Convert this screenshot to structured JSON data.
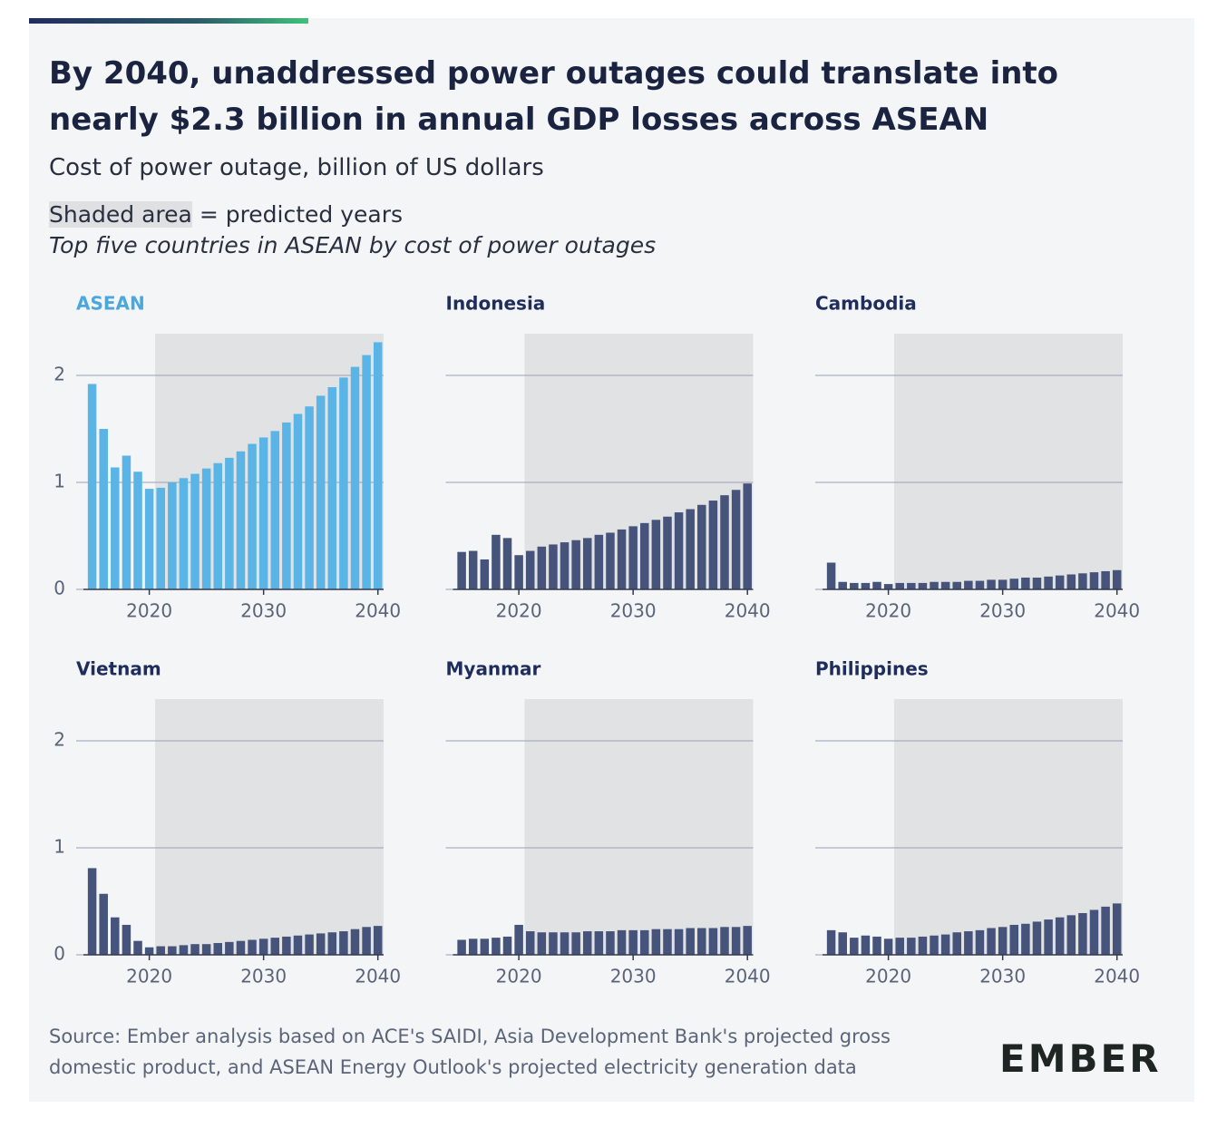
{
  "header": {
    "title": "By 2040, unaddressed power outages could translate into nearly $2.3 billion in annual GDP losses across ASEAN",
    "subtitle": "Cost of power outage, billion of US dollars",
    "legend_shaded": "Shaded area",
    "legend_text": "= predicted years",
    "note": "Top five countries in ASEAN by cost of power outages"
  },
  "chart_data": [
    {
      "type": "bar",
      "title": "ASEAN",
      "color": "#5ab4e5",
      "title_color": "#4aa8dc",
      "x": [
        2015,
        2016,
        2017,
        2018,
        2019,
        2020,
        2021,
        2022,
        2023,
        2024,
        2025,
        2026,
        2027,
        2028,
        2029,
        2030,
        2031,
        2032,
        2033,
        2034,
        2035,
        2036,
        2037,
        2038,
        2039,
        2040
      ],
      "values": [
        1.92,
        1.5,
        1.14,
        1.25,
        1.1,
        0.94,
        0.95,
        1.0,
        1.04,
        1.08,
        1.13,
        1.18,
        1.23,
        1.29,
        1.36,
        1.42,
        1.48,
        1.56,
        1.64,
        1.71,
        1.81,
        1.89,
        1.98,
        2.08,
        2.19,
        2.31
      ],
      "xlim": [
        2014,
        2040.5
      ],
      "xticks": [
        2020,
        2030,
        2040
      ],
      "ylim": [
        0,
        2.39
      ],
      "yticks": [
        0,
        1,
        2
      ],
      "shaded_range": [
        2020.5,
        2040.5
      ],
      "grid": true
    },
    {
      "type": "bar",
      "title": "Indonesia",
      "color": "#46537a",
      "title_color": "#1f2d5c",
      "x": [
        2015,
        2016,
        2017,
        2018,
        2019,
        2020,
        2021,
        2022,
        2023,
        2024,
        2025,
        2026,
        2027,
        2028,
        2029,
        2030,
        2031,
        2032,
        2033,
        2034,
        2035,
        2036,
        2037,
        2038,
        2039,
        2040
      ],
      "values": [
        0.35,
        0.36,
        0.28,
        0.51,
        0.48,
        0.32,
        0.36,
        0.4,
        0.42,
        0.44,
        0.46,
        0.48,
        0.51,
        0.53,
        0.56,
        0.59,
        0.62,
        0.65,
        0.68,
        0.72,
        0.75,
        0.79,
        0.83,
        0.88,
        0.93,
        0.99
      ],
      "xlim": [
        2014,
        2040.5
      ],
      "xticks": [
        2020,
        2030,
        2040
      ],
      "ylim": [
        0,
        2.39
      ],
      "yticks": [
        0,
        1,
        2
      ],
      "shaded_range": [
        2020.5,
        2040.5
      ],
      "grid": true
    },
    {
      "type": "bar",
      "title": "Cambodia",
      "color": "#46537a",
      "title_color": "#1f2d5c",
      "x": [
        2015,
        2016,
        2017,
        2018,
        2019,
        2020,
        2021,
        2022,
        2023,
        2024,
        2025,
        2026,
        2027,
        2028,
        2029,
        2030,
        2031,
        2032,
        2033,
        2034,
        2035,
        2036,
        2037,
        2038,
        2039,
        2040
      ],
      "values": [
        0.25,
        0.07,
        0.06,
        0.06,
        0.07,
        0.05,
        0.06,
        0.06,
        0.06,
        0.07,
        0.07,
        0.07,
        0.08,
        0.08,
        0.09,
        0.09,
        0.1,
        0.11,
        0.11,
        0.12,
        0.13,
        0.14,
        0.15,
        0.16,
        0.17,
        0.18
      ],
      "xlim": [
        2014,
        2040.5
      ],
      "xticks": [
        2020,
        2030,
        2040
      ],
      "ylim": [
        0,
        2.39
      ],
      "yticks": [
        0,
        1,
        2
      ],
      "shaded_range": [
        2020.5,
        2040.5
      ],
      "grid": true
    },
    {
      "type": "bar",
      "title": "Vietnam",
      "color": "#46537a",
      "title_color": "#1f2d5c",
      "x": [
        2015,
        2016,
        2017,
        2018,
        2019,
        2020,
        2021,
        2022,
        2023,
        2024,
        2025,
        2026,
        2027,
        2028,
        2029,
        2030,
        2031,
        2032,
        2033,
        2034,
        2035,
        2036,
        2037,
        2038,
        2039,
        2040
      ],
      "values": [
        0.81,
        0.57,
        0.35,
        0.28,
        0.13,
        0.07,
        0.08,
        0.08,
        0.09,
        0.1,
        0.1,
        0.11,
        0.12,
        0.13,
        0.14,
        0.15,
        0.16,
        0.17,
        0.18,
        0.19,
        0.2,
        0.21,
        0.22,
        0.24,
        0.26,
        0.27
      ],
      "xlim": [
        2014,
        2040.5
      ],
      "xticks": [
        2020,
        2030,
        2040
      ],
      "ylim": [
        0,
        2.39
      ],
      "yticks": [
        0,
        1,
        2
      ],
      "shaded_range": [
        2020.5,
        2040.5
      ],
      "grid": true
    },
    {
      "type": "bar",
      "title": "Myanmar",
      "color": "#46537a",
      "title_color": "#1f2d5c",
      "x": [
        2015,
        2016,
        2017,
        2018,
        2019,
        2020,
        2021,
        2022,
        2023,
        2024,
        2025,
        2026,
        2027,
        2028,
        2029,
        2030,
        2031,
        2032,
        2033,
        2034,
        2035,
        2036,
        2037,
        2038,
        2039,
        2040
      ],
      "values": [
        0.14,
        0.15,
        0.15,
        0.16,
        0.17,
        0.28,
        0.22,
        0.21,
        0.21,
        0.21,
        0.21,
        0.22,
        0.22,
        0.22,
        0.23,
        0.23,
        0.23,
        0.24,
        0.24,
        0.24,
        0.25,
        0.25,
        0.25,
        0.26,
        0.26,
        0.27
      ],
      "xlim": [
        2014,
        2040.5
      ],
      "xticks": [
        2020,
        2030,
        2040
      ],
      "ylim": [
        0,
        2.39
      ],
      "yticks": [
        0,
        1,
        2
      ],
      "shaded_range": [
        2020.5,
        2040.5
      ],
      "grid": true
    },
    {
      "type": "bar",
      "title": "Philippines",
      "color": "#46537a",
      "title_color": "#1f2d5c",
      "x": [
        2015,
        2016,
        2017,
        2018,
        2019,
        2020,
        2021,
        2022,
        2023,
        2024,
        2025,
        2026,
        2027,
        2028,
        2029,
        2030,
        2031,
        2032,
        2033,
        2034,
        2035,
        2036,
        2037,
        2038,
        2039,
        2040
      ],
      "values": [
        0.23,
        0.21,
        0.16,
        0.18,
        0.17,
        0.15,
        0.16,
        0.16,
        0.17,
        0.18,
        0.19,
        0.21,
        0.22,
        0.23,
        0.25,
        0.26,
        0.28,
        0.29,
        0.31,
        0.33,
        0.35,
        0.37,
        0.39,
        0.42,
        0.45,
        0.48
      ],
      "xlim": [
        2014,
        2040.5
      ],
      "xticks": [
        2020,
        2030,
        2040
      ],
      "ylim": [
        0,
        2.39
      ],
      "yticks": [
        0,
        1,
        2
      ],
      "shaded_range": [
        2020.5,
        2040.5
      ],
      "grid": true
    }
  ],
  "footer": {
    "source": "Source: Ember analysis based on ACE's SAIDI, Asia Development Bank's projected gross domestic product, and ASEAN Energy Outlook's projected electricity generation data",
    "logo": "EMBER"
  }
}
